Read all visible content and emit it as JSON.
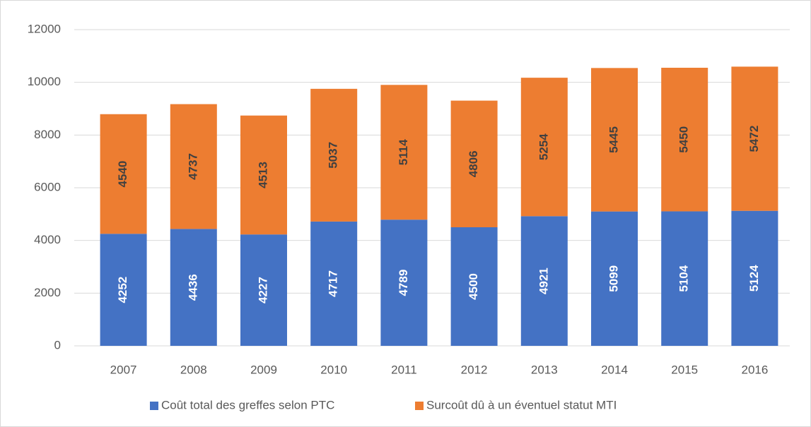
{
  "chart_data": {
    "type": "stacked_bar",
    "categories": [
      "2007",
      "2008",
      "2009",
      "2010",
      "2011",
      "2012",
      "2013",
      "2014",
      "2015",
      "2016"
    ],
    "series": [
      {
        "name": "Coût total des greffes selon PTC",
        "color": "#4472c4",
        "values": [
          4252,
          4436,
          4227,
          4717,
          4789,
          4500,
          4921,
          5099,
          5104,
          5124
        ]
      },
      {
        "name": "Surcoût dû à un éventuel statut MTI",
        "color": "#ed7d31",
        "values": [
          4540,
          4737,
          4513,
          5037,
          5114,
          4806,
          5254,
          5445,
          5450,
          5472
        ]
      }
    ],
    "ylim": [
      0,
      12000
    ],
    "yticks": [
      0,
      2000,
      4000,
      6000,
      8000,
      10000,
      12000
    ],
    "grid": true,
    "legend": "bottom"
  }
}
